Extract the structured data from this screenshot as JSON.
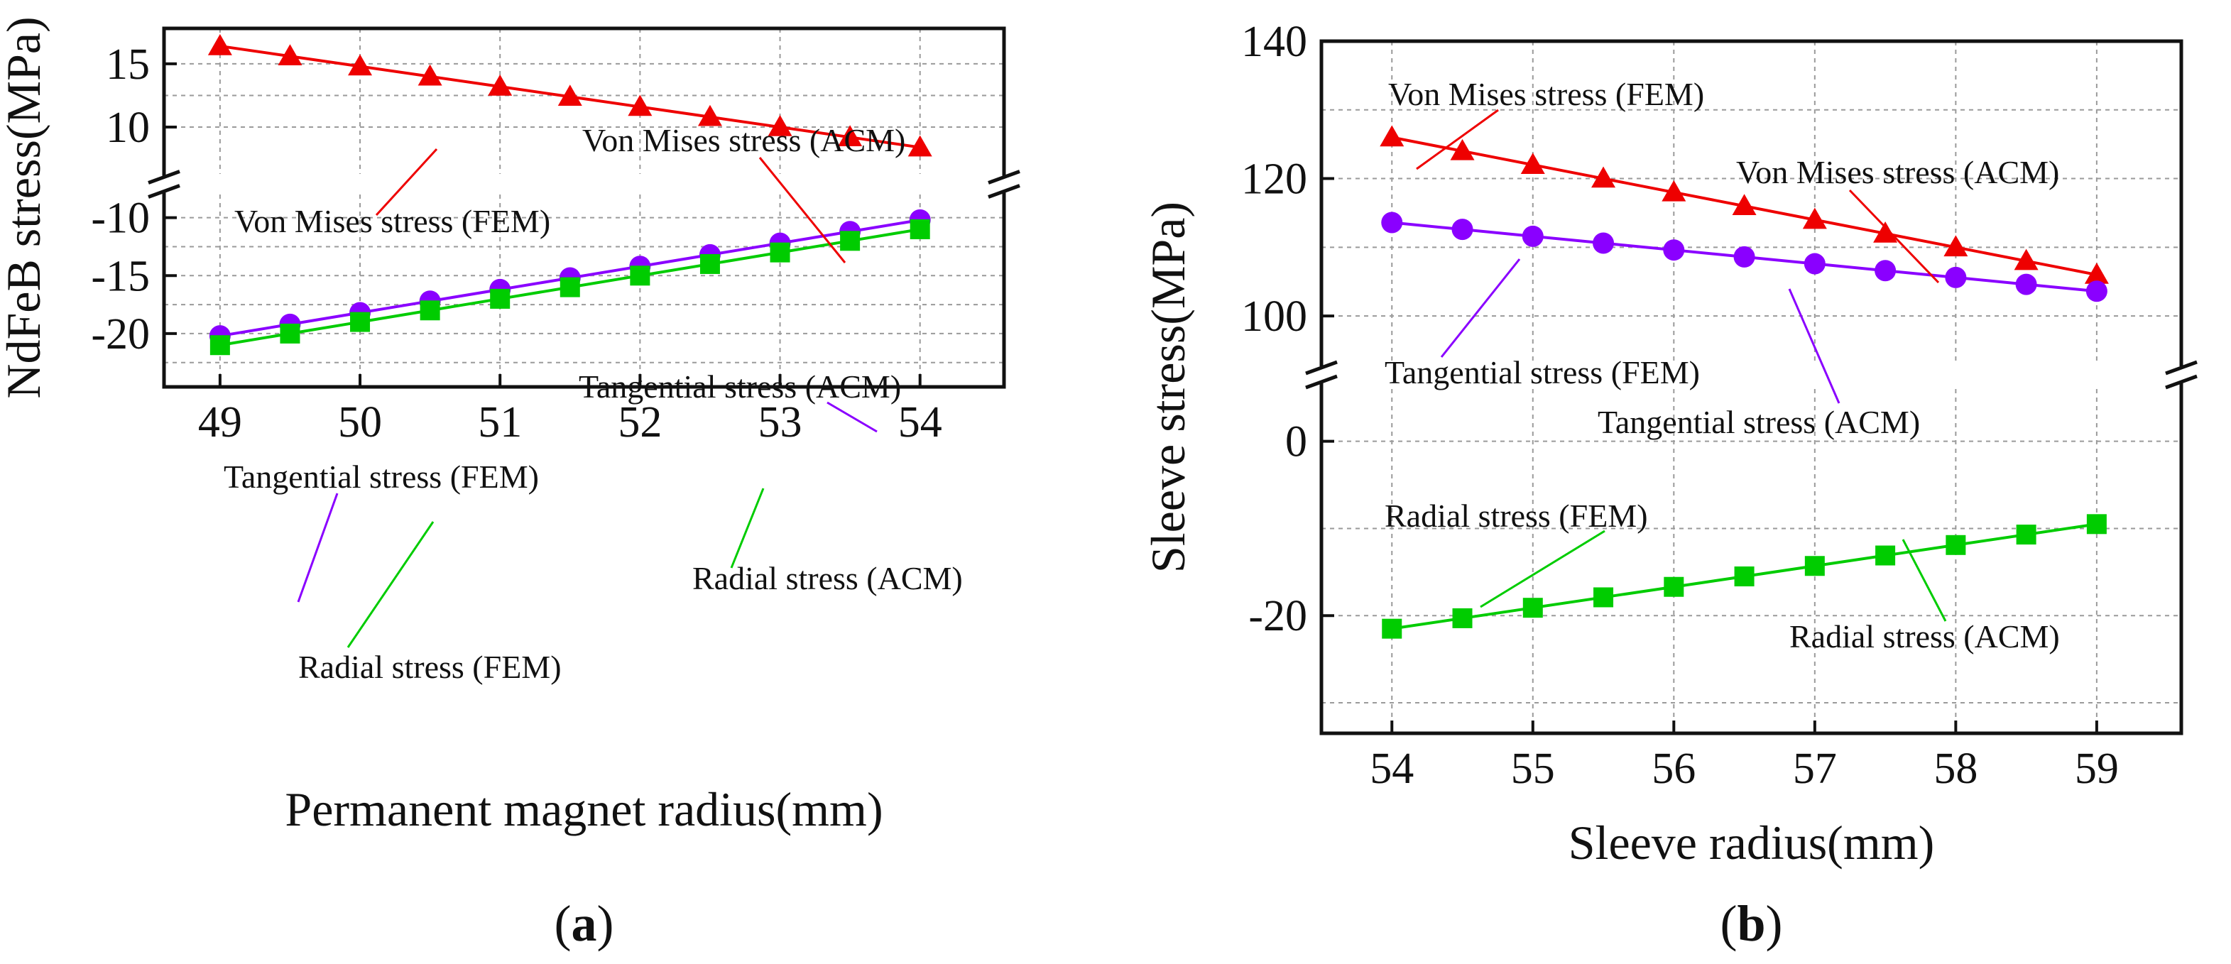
{
  "colors": {
    "von_mises": "#ee0000",
    "tangential": "#8a00ff",
    "radial": "#00cc00",
    "axis": "#111111",
    "grid": "#9a9a9a"
  },
  "chart_data": [
    {
      "type": "line",
      "panel_label": "(a)",
      "panel_letter": "a",
      "xlabel": "Permanent magnet radius(mm)",
      "ylabel": "NdFeB stress(MPa)",
      "xlim": [
        48.6,
        54.6
      ],
      "xticks": [
        "49",
        "50",
        "51",
        "52",
        "53",
        "54"
      ],
      "broken_y_axis": true,
      "upper_segment": {
        "ylim": [
          6.3,
          17.8
        ],
        "yticks": [
          "10",
          "15"
        ]
      },
      "lower_segment": {
        "ylim": [
          -24.6,
          -8.0
        ],
        "yticks": [
          "-20",
          "-15",
          "-10"
        ]
      },
      "x": [
        49,
        49.5,
        50,
        50.5,
        51,
        51.5,
        52,
        52.5,
        53,
        53.5,
        54
      ],
      "series": [
        {
          "name": "Von Mises stress",
          "segment": "upper",
          "marker": "triangle",
          "color_key": "von_mises",
          "values": [
            16.4,
            15.6,
            14.8,
            14.0,
            13.2,
            12.4,
            11.6,
            10.8,
            10.0,
            9.2,
            8.4
          ]
        },
        {
          "name": "Tangential stress",
          "segment": "lower",
          "marker": "circle",
          "color_key": "tangential",
          "values": [
            -20.2,
            -19.2,
            -18.2,
            -17.2,
            -16.2,
            -15.2,
            -14.2,
            -13.2,
            -12.2,
            -11.2,
            -10.2
          ]
        },
        {
          "name": "Radial stress",
          "segment": "lower",
          "marker": "square",
          "color_key": "radial",
          "values": [
            -21.0,
            -20.0,
            -19.0,
            -18.0,
            -17.0,
            -16.0,
            -15.0,
            -14.0,
            -13.0,
            -12.0,
            -11.0
          ]
        }
      ],
      "annotations": [
        {
          "text": "Von Mises stress (ACM)",
          "series": "Von Mises stress"
        },
        {
          "text": "Von Mises stress (FEM)",
          "series": "Von Mises stress"
        },
        {
          "text": "Tangential stress (ACM)",
          "series": "Tangential stress"
        },
        {
          "text": "Tangential stress (FEM)",
          "series": "Tangential stress"
        },
        {
          "text": "Radial stress (ACM)",
          "series": "Radial stress"
        },
        {
          "text": "Radial stress (FEM)",
          "series": "Radial stress"
        }
      ]
    },
    {
      "type": "line",
      "panel_label": "(b)",
      "panel_letter": "b",
      "xlabel": "Sleeve radius(mm)",
      "ylabel": "Sleeve stress(MPa)",
      "xlim": [
        53.5,
        59.6
      ],
      "xticks": [
        "54",
        "55",
        "56",
        "57",
        "58",
        "59"
      ],
      "broken_y_axis": true,
      "upper_segment": {
        "ylim": [
          93.5,
          140
        ],
        "yticks": [
          "100",
          "120",
          "140"
        ]
      },
      "lower_segment": {
        "ylim": [
          -33.5,
          6.0
        ],
        "yticks": [
          "-20",
          "0"
        ]
      },
      "x": [
        54,
        54.5,
        55,
        55.5,
        56,
        56.5,
        57,
        57.5,
        58,
        58.5,
        59
      ],
      "series": [
        {
          "name": "Von Mises stress",
          "segment": "upper",
          "marker": "triangle",
          "color_key": "von_mises",
          "values": [
            126.0,
            124.0,
            122.0,
            120.0,
            118.0,
            116.0,
            114.0,
            112.0,
            110.0,
            108.0,
            106.0
          ]
        },
        {
          "name": "Tangential stress",
          "segment": "upper",
          "marker": "circle",
          "color_key": "tangential",
          "values": [
            113.6,
            112.6,
            111.6,
            110.6,
            109.6,
            108.6,
            107.6,
            106.6,
            105.6,
            104.6,
            103.6
          ]
        },
        {
          "name": "Radial stress",
          "segment": "lower",
          "marker": "square",
          "color_key": "radial",
          "values": [
            -21.5,
            -20.3,
            -19.1,
            -17.9,
            -16.7,
            -15.5,
            -14.3,
            -13.1,
            -11.9,
            -10.7,
            -9.5
          ]
        }
      ],
      "annotations": [
        {
          "text": "Von Mises stress (FEM)",
          "series": "Von Mises stress"
        },
        {
          "text": "Von Mises stress (ACM)",
          "series": "Von Mises stress"
        },
        {
          "text": "Tangential stress (FEM)",
          "series": "Tangential stress"
        },
        {
          "text": "Tangential stress (ACM)",
          "series": "Tangential stress"
        },
        {
          "text": "Radial stress (FEM)",
          "series": "Radial stress"
        },
        {
          "text": "Radial stress (ACM)",
          "series": "Radial stress"
        }
      ]
    }
  ]
}
